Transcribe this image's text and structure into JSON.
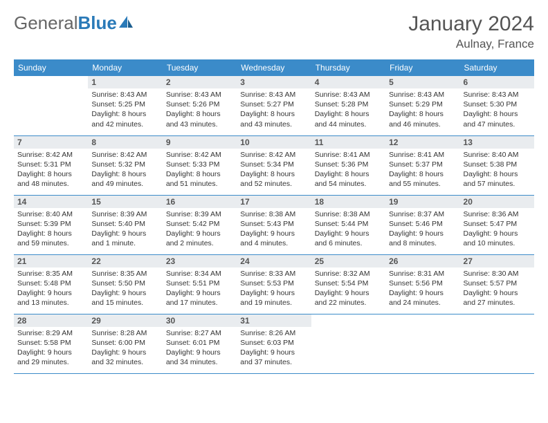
{
  "logo": {
    "part1": "General",
    "part2": "Blue"
  },
  "title": "January 2024",
  "location": "Aulnay, France",
  "colors": {
    "header_bg": "#3b8bc9",
    "header_text": "#ffffff",
    "daynum_bg": "#e9ecef",
    "border": "#3b8bc9",
    "logo_accent": "#2a7ab8"
  },
  "weekdays": [
    "Sunday",
    "Monday",
    "Tuesday",
    "Wednesday",
    "Thursday",
    "Friday",
    "Saturday"
  ],
  "weeks": [
    [
      null,
      {
        "n": "1",
        "l1": "Sunrise: 8:43 AM",
        "l2": "Sunset: 5:25 PM",
        "l3": "Daylight: 8 hours",
        "l4": "and 42 minutes."
      },
      {
        "n": "2",
        "l1": "Sunrise: 8:43 AM",
        "l2": "Sunset: 5:26 PM",
        "l3": "Daylight: 8 hours",
        "l4": "and 43 minutes."
      },
      {
        "n": "3",
        "l1": "Sunrise: 8:43 AM",
        "l2": "Sunset: 5:27 PM",
        "l3": "Daylight: 8 hours",
        "l4": "and 43 minutes."
      },
      {
        "n": "4",
        "l1": "Sunrise: 8:43 AM",
        "l2": "Sunset: 5:28 PM",
        "l3": "Daylight: 8 hours",
        "l4": "and 44 minutes."
      },
      {
        "n": "5",
        "l1": "Sunrise: 8:43 AM",
        "l2": "Sunset: 5:29 PM",
        "l3": "Daylight: 8 hours",
        "l4": "and 46 minutes."
      },
      {
        "n": "6",
        "l1": "Sunrise: 8:43 AM",
        "l2": "Sunset: 5:30 PM",
        "l3": "Daylight: 8 hours",
        "l4": "and 47 minutes."
      }
    ],
    [
      {
        "n": "7",
        "l1": "Sunrise: 8:42 AM",
        "l2": "Sunset: 5:31 PM",
        "l3": "Daylight: 8 hours",
        "l4": "and 48 minutes."
      },
      {
        "n": "8",
        "l1": "Sunrise: 8:42 AM",
        "l2": "Sunset: 5:32 PM",
        "l3": "Daylight: 8 hours",
        "l4": "and 49 minutes."
      },
      {
        "n": "9",
        "l1": "Sunrise: 8:42 AM",
        "l2": "Sunset: 5:33 PM",
        "l3": "Daylight: 8 hours",
        "l4": "and 51 minutes."
      },
      {
        "n": "10",
        "l1": "Sunrise: 8:42 AM",
        "l2": "Sunset: 5:34 PM",
        "l3": "Daylight: 8 hours",
        "l4": "and 52 minutes."
      },
      {
        "n": "11",
        "l1": "Sunrise: 8:41 AM",
        "l2": "Sunset: 5:36 PM",
        "l3": "Daylight: 8 hours",
        "l4": "and 54 minutes."
      },
      {
        "n": "12",
        "l1": "Sunrise: 8:41 AM",
        "l2": "Sunset: 5:37 PM",
        "l3": "Daylight: 8 hours",
        "l4": "and 55 minutes."
      },
      {
        "n": "13",
        "l1": "Sunrise: 8:40 AM",
        "l2": "Sunset: 5:38 PM",
        "l3": "Daylight: 8 hours",
        "l4": "and 57 minutes."
      }
    ],
    [
      {
        "n": "14",
        "l1": "Sunrise: 8:40 AM",
        "l2": "Sunset: 5:39 PM",
        "l3": "Daylight: 8 hours",
        "l4": "and 59 minutes."
      },
      {
        "n": "15",
        "l1": "Sunrise: 8:39 AM",
        "l2": "Sunset: 5:40 PM",
        "l3": "Daylight: 9 hours",
        "l4": "and 1 minute."
      },
      {
        "n": "16",
        "l1": "Sunrise: 8:39 AM",
        "l2": "Sunset: 5:42 PM",
        "l3": "Daylight: 9 hours",
        "l4": "and 2 minutes."
      },
      {
        "n": "17",
        "l1": "Sunrise: 8:38 AM",
        "l2": "Sunset: 5:43 PM",
        "l3": "Daylight: 9 hours",
        "l4": "and 4 minutes."
      },
      {
        "n": "18",
        "l1": "Sunrise: 8:38 AM",
        "l2": "Sunset: 5:44 PM",
        "l3": "Daylight: 9 hours",
        "l4": "and 6 minutes."
      },
      {
        "n": "19",
        "l1": "Sunrise: 8:37 AM",
        "l2": "Sunset: 5:46 PM",
        "l3": "Daylight: 9 hours",
        "l4": "and 8 minutes."
      },
      {
        "n": "20",
        "l1": "Sunrise: 8:36 AM",
        "l2": "Sunset: 5:47 PM",
        "l3": "Daylight: 9 hours",
        "l4": "and 10 minutes."
      }
    ],
    [
      {
        "n": "21",
        "l1": "Sunrise: 8:35 AM",
        "l2": "Sunset: 5:48 PM",
        "l3": "Daylight: 9 hours",
        "l4": "and 13 minutes."
      },
      {
        "n": "22",
        "l1": "Sunrise: 8:35 AM",
        "l2": "Sunset: 5:50 PM",
        "l3": "Daylight: 9 hours",
        "l4": "and 15 minutes."
      },
      {
        "n": "23",
        "l1": "Sunrise: 8:34 AM",
        "l2": "Sunset: 5:51 PM",
        "l3": "Daylight: 9 hours",
        "l4": "and 17 minutes."
      },
      {
        "n": "24",
        "l1": "Sunrise: 8:33 AM",
        "l2": "Sunset: 5:53 PM",
        "l3": "Daylight: 9 hours",
        "l4": "and 19 minutes."
      },
      {
        "n": "25",
        "l1": "Sunrise: 8:32 AM",
        "l2": "Sunset: 5:54 PM",
        "l3": "Daylight: 9 hours",
        "l4": "and 22 minutes."
      },
      {
        "n": "26",
        "l1": "Sunrise: 8:31 AM",
        "l2": "Sunset: 5:56 PM",
        "l3": "Daylight: 9 hours",
        "l4": "and 24 minutes."
      },
      {
        "n": "27",
        "l1": "Sunrise: 8:30 AM",
        "l2": "Sunset: 5:57 PM",
        "l3": "Daylight: 9 hours",
        "l4": "and 27 minutes."
      }
    ],
    [
      {
        "n": "28",
        "l1": "Sunrise: 8:29 AM",
        "l2": "Sunset: 5:58 PM",
        "l3": "Daylight: 9 hours",
        "l4": "and 29 minutes."
      },
      {
        "n": "29",
        "l1": "Sunrise: 8:28 AM",
        "l2": "Sunset: 6:00 PM",
        "l3": "Daylight: 9 hours",
        "l4": "and 32 minutes."
      },
      {
        "n": "30",
        "l1": "Sunrise: 8:27 AM",
        "l2": "Sunset: 6:01 PM",
        "l3": "Daylight: 9 hours",
        "l4": "and 34 minutes."
      },
      {
        "n": "31",
        "l1": "Sunrise: 8:26 AM",
        "l2": "Sunset: 6:03 PM",
        "l3": "Daylight: 9 hours",
        "l4": "and 37 minutes."
      },
      null,
      null,
      null
    ]
  ]
}
